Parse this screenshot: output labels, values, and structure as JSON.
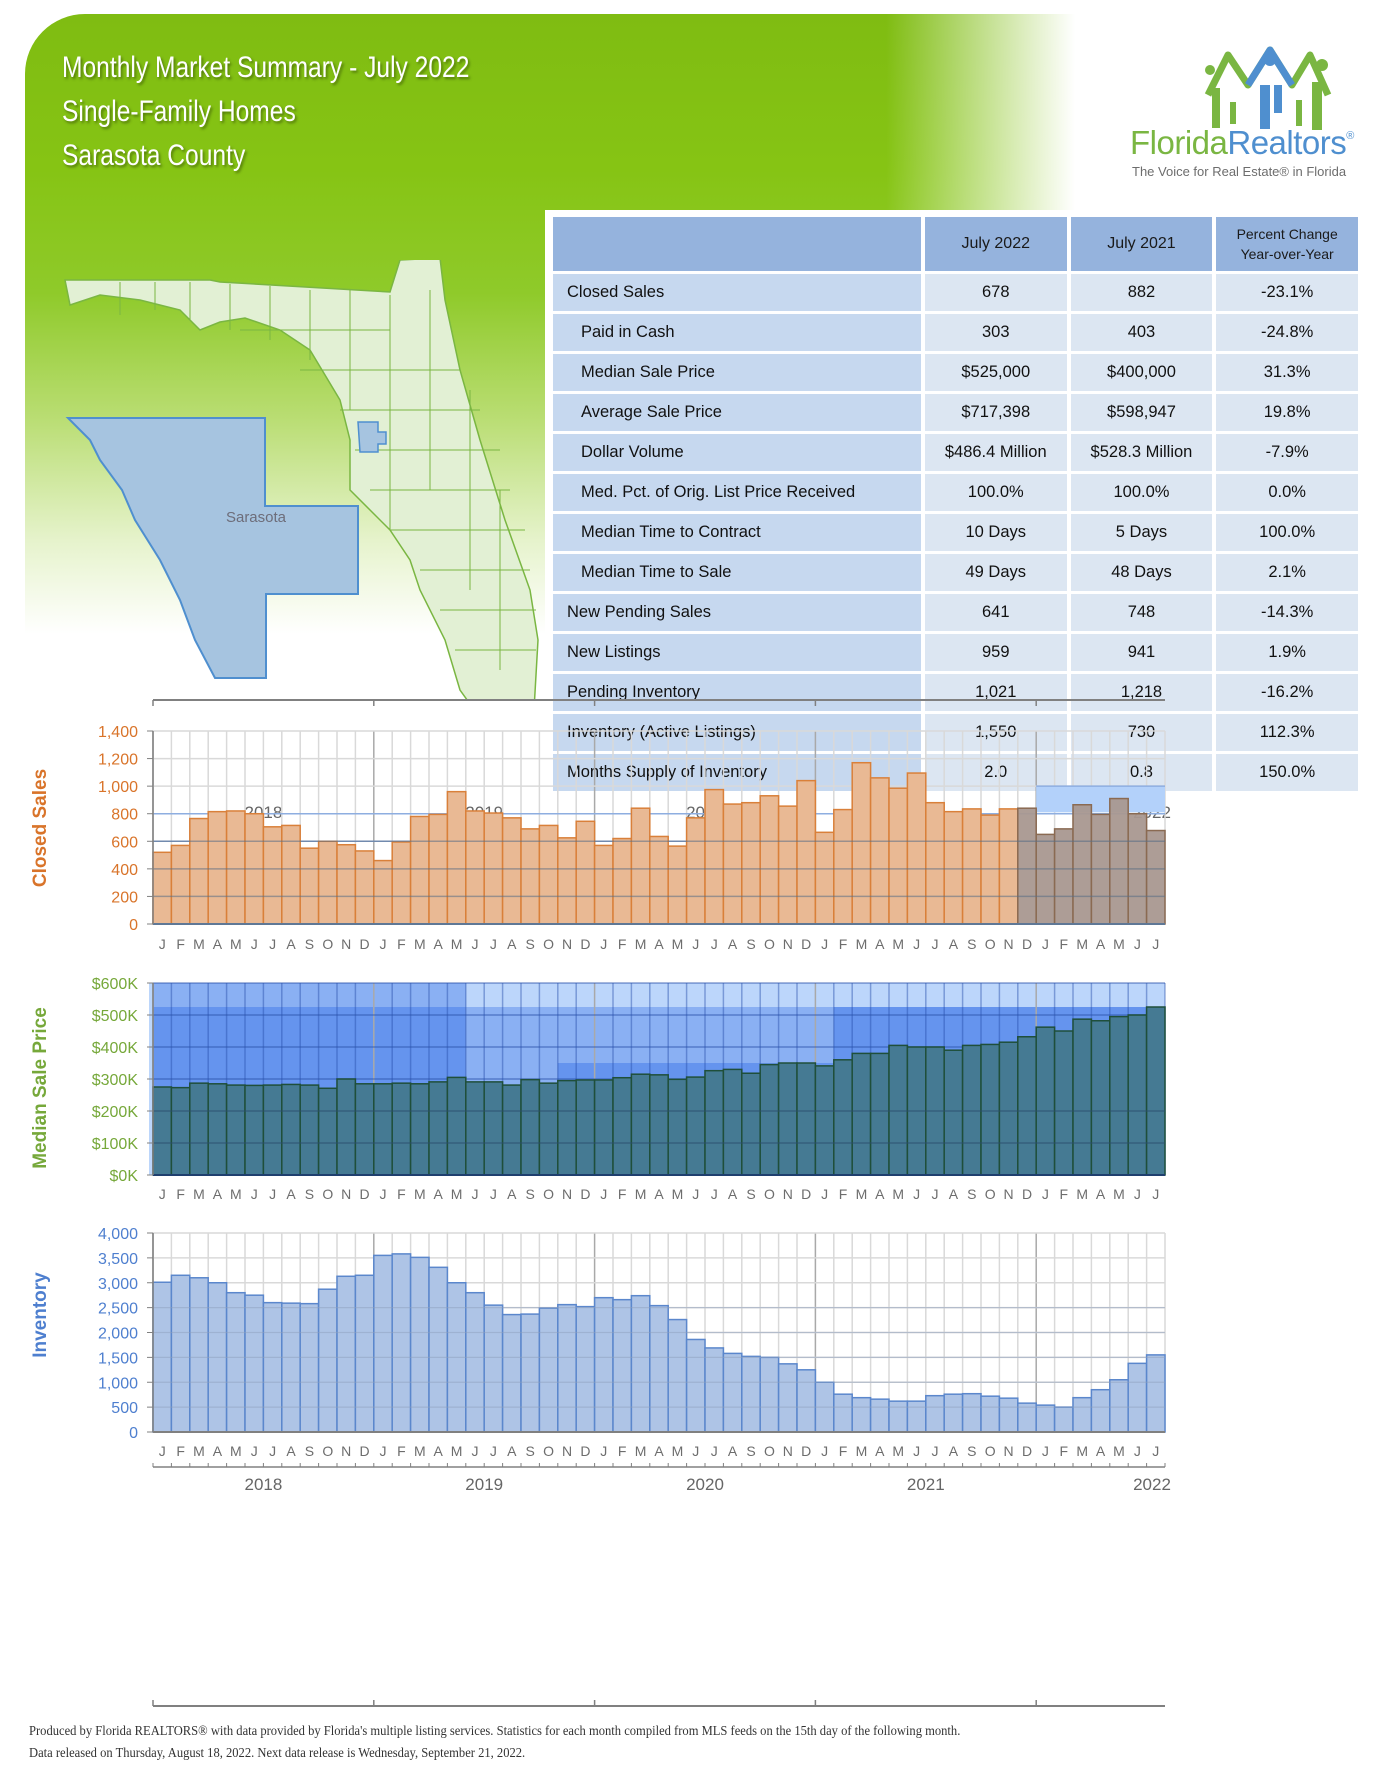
{
  "header": {
    "title_line1": "Monthly Market Summary - July 2022",
    "title_line2": "Single-Family Homes",
    "title_line3": "Sarasota County"
  },
  "logo": {
    "name_part1": "Florida",
    "name_part2": "Realtors",
    "registered": "®",
    "tagline": "The Voice for Real Estate® in Florida",
    "icon": "houses-people-logo-icon"
  },
  "map": {
    "county_label": "Sarasota",
    "icon": "florida-county-map"
  },
  "table": {
    "headers": [
      "",
      "July 2022",
      "July 2021",
      "Percent Change Year-over-Year"
    ],
    "header_pct_line1": "Percent Change",
    "header_pct_line2": "Year-over-Year",
    "rows": [
      {
        "label": "Closed Sales",
        "sub": false,
        "cur": "678",
        "prev": "882",
        "pct": "-23.1%"
      },
      {
        "label": "Paid in Cash",
        "sub": true,
        "cur": "303",
        "prev": "403",
        "pct": "-24.8%"
      },
      {
        "label": "Median Sale Price",
        "sub": true,
        "cur": "$525,000",
        "prev": "$400,000",
        "pct": "31.3%"
      },
      {
        "label": "Average Sale Price",
        "sub": true,
        "cur": "$717,398",
        "prev": "$598,947",
        "pct": "19.8%"
      },
      {
        "label": "Dollar Volume",
        "sub": true,
        "cur": "$486.4 Million",
        "prev": "$528.3 Million",
        "pct": "-7.9%"
      },
      {
        "label": "Med. Pct. of Orig. List Price Received",
        "sub": true,
        "cur": "100.0%",
        "prev": "100.0%",
        "pct": "0.0%"
      },
      {
        "label": "Median Time to Contract",
        "sub": true,
        "cur": "10 Days",
        "prev": "5 Days",
        "pct": "100.0%"
      },
      {
        "label": "Median Time to Sale",
        "sub": true,
        "cur": "49 Days",
        "prev": "48 Days",
        "pct": "2.1%"
      },
      {
        "label": "New Pending Sales",
        "sub": false,
        "cur": "641",
        "prev": "748",
        "pct": "-14.3%"
      },
      {
        "label": "New Listings",
        "sub": false,
        "cur": "959",
        "prev": "941",
        "pct": "1.9%"
      },
      {
        "label": "Pending Inventory",
        "sub": false,
        "cur": "1,021",
        "prev": "1,218",
        "pct": "-16.2%"
      },
      {
        "label": "Inventory (Active Listings)",
        "sub": false,
        "cur": "1,550",
        "prev": "730",
        "pct": "112.3%"
      },
      {
        "label": "Months Supply of Inventory",
        "sub": false,
        "cur": "2.0",
        "prev": "0.8",
        "pct": "150.0%"
      }
    ]
  },
  "colors": {
    "closed_sales": "#e9b994",
    "closed_sales_stroke": "#d9803a",
    "closed_sales_axis": "#d9742a",
    "closed_sales_recent": "#a99890",
    "median_price_bar": "#457a93",
    "median_price_axis": "#76a83a",
    "inventory_bar": "#aec4e6",
    "inventory_stroke": "#5b87cc",
    "inventory_axis": "#4e7fcf",
    "table_header": "#95b3dd",
    "table_label": "#c6d8ef",
    "table_value": "#dce6f2"
  },
  "chart_data": [
    {
      "type": "bar",
      "title": "Closed Sales",
      "ylabel": "Closed Sales",
      "ylim": [
        0,
        1400
      ],
      "yticks": [
        "0",
        "200",
        "400",
        "600",
        "800",
        "1,000",
        "1,200",
        "1,400"
      ],
      "years": [
        "2018",
        "2019",
        "2020",
        "2021",
        "2022"
      ],
      "months": [
        "J",
        "F",
        "M",
        "A",
        "M",
        "J",
        "J",
        "A",
        "S",
        "O",
        "N",
        "D",
        "J",
        "F",
        "M",
        "A",
        "M",
        "J",
        "J",
        "A",
        "S",
        "O",
        "N",
        "D",
        "J",
        "F",
        "M",
        "A",
        "M",
        "J",
        "J",
        "A",
        "S",
        "O",
        "N",
        "D",
        "J",
        "F",
        "M",
        "A",
        "M",
        "J",
        "J",
        "A",
        "S",
        "O",
        "N",
        "D",
        "J",
        "F",
        "M",
        "A",
        "M",
        "J",
        "J"
      ],
      "values": [
        520,
        570,
        765,
        815,
        820,
        800,
        705,
        715,
        550,
        600,
        575,
        530,
        460,
        595,
        780,
        795,
        960,
        820,
        805,
        770,
        690,
        715,
        625,
        745,
        570,
        620,
        840,
        635,
        565,
        770,
        975,
        870,
        880,
        930,
        855,
        1040,
        665,
        830,
        1170,
        1060,
        985,
        1095,
        880,
        815,
        835,
        790,
        835,
        840,
        650,
        690,
        865,
        795,
        910,
        800,
        678
      ],
      "highlight_start_index": 47,
      "reference_band": [
        810,
        1000
      ]
    },
    {
      "type": "bar",
      "title": "Median Sale Price",
      "ylabel": "Median Sale Price",
      "ylim": [
        0,
        600000
      ],
      "yticks": [
        "$0K",
        "$100K",
        "$200K",
        "$300K",
        "$400K",
        "$500K",
        "$600K"
      ],
      "months": [
        "J",
        "F",
        "M",
        "A",
        "M",
        "J",
        "J",
        "A",
        "S",
        "O",
        "N",
        "D",
        "J",
        "F",
        "M",
        "A",
        "M",
        "J",
        "J",
        "A",
        "S",
        "O",
        "N",
        "D",
        "J",
        "F",
        "M",
        "A",
        "M",
        "J",
        "J",
        "A",
        "S",
        "O",
        "N",
        "D",
        "J",
        "F",
        "M",
        "A",
        "M",
        "J",
        "J",
        "A",
        "S",
        "O",
        "N",
        "D",
        "J",
        "F",
        "M",
        "A",
        "M",
        "J",
        "J"
      ],
      "values": [
        275000,
        273000,
        287000,
        285000,
        281000,
        280000,
        281000,
        283000,
        281000,
        271000,
        300000,
        285000,
        285000,
        287000,
        285000,
        291000,
        305000,
        291000,
        291000,
        281000,
        298000,
        287000,
        295000,
        297000,
        297000,
        304000,
        315000,
        313000,
        299000,
        306000,
        326000,
        330000,
        318000,
        345000,
        350000,
        350000,
        341000,
        360000,
        380000,
        380000,
        405000,
        400000,
        400000,
        390000,
        405000,
        408000,
        415000,
        432000,
        462000,
        450000,
        487000,
        482000,
        495000,
        500000,
        525000
      ]
    },
    {
      "type": "bar",
      "title": "Inventory",
      "ylabel": "Inventory",
      "ylim": [
        0,
        4000
      ],
      "yticks": [
        "0",
        "500",
        "1,000",
        "1,500",
        "2,000",
        "2,500",
        "3,000",
        "3,500",
        "4,000"
      ],
      "years": [
        "2018",
        "2019",
        "2020",
        "2021",
        "2022"
      ],
      "months": [
        "J",
        "F",
        "M",
        "A",
        "M",
        "J",
        "J",
        "A",
        "S",
        "O",
        "N",
        "D",
        "J",
        "F",
        "M",
        "A",
        "M",
        "J",
        "J",
        "A",
        "S",
        "O",
        "N",
        "D",
        "J",
        "F",
        "M",
        "A",
        "M",
        "J",
        "J",
        "A",
        "S",
        "O",
        "N",
        "D",
        "J",
        "F",
        "M",
        "A",
        "M",
        "J",
        "J",
        "A",
        "S",
        "O",
        "N",
        "D",
        "J",
        "F",
        "M",
        "A",
        "M",
        "J",
        "J"
      ],
      "values": [
        3010,
        3150,
        3100,
        3000,
        2800,
        2750,
        2600,
        2590,
        2580,
        2870,
        3130,
        3150,
        3550,
        3580,
        3510,
        3310,
        3000,
        2800,
        2550,
        2360,
        2370,
        2490,
        2560,
        2520,
        2700,
        2660,
        2740,
        2540,
        2260,
        1860,
        1690,
        1580,
        1520,
        1500,
        1370,
        1250,
        1000,
        760,
        690,
        660,
        620,
        620,
        730,
        760,
        770,
        720,
        680,
        580,
        540,
        500,
        690,
        850,
        1050,
        1380,
        1550
      ]
    }
  ],
  "footer": {
    "line1": "Produced by Florida REALTORS® with data provided by Florida's multiple listing services. Statistics for each month compiled from MLS feeds on the 15th day of the following month.",
    "line2": "Data released on Thursday, August 18, 2022. Next data release is Wednesday, September 21, 2022."
  }
}
